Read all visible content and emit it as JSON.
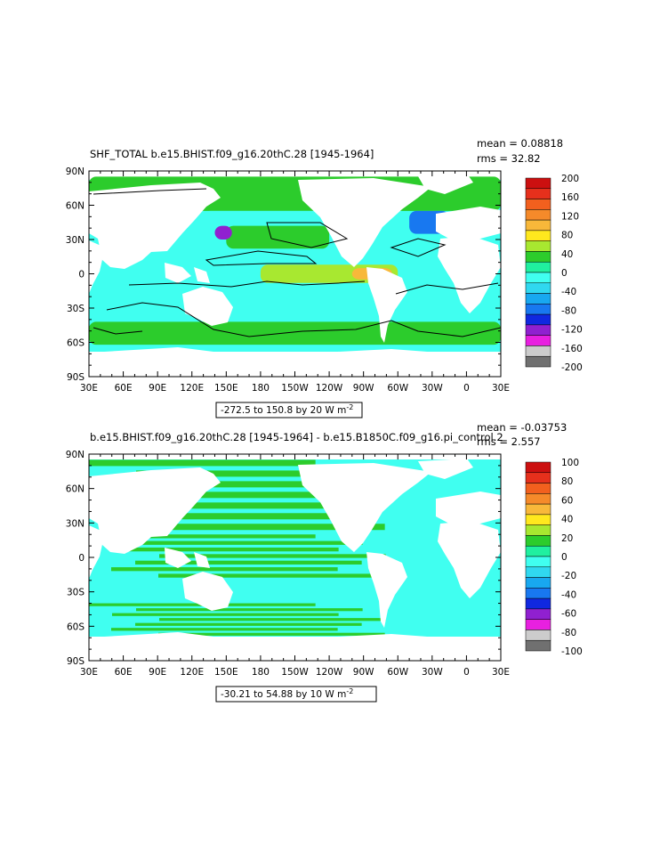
{
  "chart_data": [
    {
      "type": "heatmap",
      "title": "SHF_TOTAL  b.e15.BHIST.f09_g16.20thC.28  [1945-1964]",
      "stats": {
        "mean": "mean = 0.08818",
        "rms": "rms = 32.82"
      },
      "lon_ticks": [
        "30E",
        "60E",
        "90E",
        "120E",
        "150E",
        "180",
        "150W",
        "120W",
        "90W",
        "60W",
        "30W",
        "0",
        "30E"
      ],
      "lat_ticks": [
        "90N",
        "60N",
        "30N",
        "0",
        "30S",
        "60S",
        "90S"
      ],
      "colorbar_labels": [
        "200",
        "160",
        "120",
        "80",
        "40",
        "0",
        "-40",
        "-80",
        "-120",
        "-160",
        "-200"
      ],
      "colorbar_colors": [
        "#cc1010",
        "#e6301c",
        "#f2601e",
        "#f58a2a",
        "#f8b83a",
        "#ffe81e",
        "#a8e830",
        "#2ccc2c",
        "#20f0a0",
        "#40fff0",
        "#30d8f0",
        "#18a8f0",
        "#1878f0",
        "#1028e0",
        "#9020d0",
        "#e820e0",
        "#cccccc",
        "#707070"
      ],
      "range_label": "-272.5 to 150.8 by 20  W m",
      "range_unit_sup": "-2",
      "xlim": [
        30,
        390
      ],
      "ylim": [
        -90,
        90
      ],
      "regions": [
        {
          "name": "green-band-n1",
          "lon": [
            30,
            390
          ],
          "lat": [
            55,
            85
          ],
          "level": "#2ccc2c"
        },
        {
          "name": "cyan-nh",
          "lon": [
            130,
            235
          ],
          "lat": [
            10,
            55
          ],
          "level": "#40fff0"
        },
        {
          "name": "green-npac-zone",
          "lon": [
            150,
            240
          ],
          "lat": [
            22,
            42
          ],
          "level": "#2ccc2c"
        },
        {
          "name": "eq-warm",
          "lon": [
            180,
            300
          ],
          "lat": [
            -8,
            8
          ],
          "level": "#a8e830"
        },
        {
          "name": "eq-hot",
          "lon": [
            260,
            295
          ],
          "lat": [
            -5,
            5
          ],
          "level": "#f8b83a"
        },
        {
          "name": "so-green",
          "lon": [
            30,
            390
          ],
          "lat": [
            -62,
            -42
          ],
          "level": "#2ccc2c"
        },
        {
          "name": "natl-blue",
          "lon": [
            310,
            345
          ],
          "lat": [
            35,
            55
          ],
          "level": "#1878f0"
        },
        {
          "name": "nwp-purple",
          "lon": [
            140,
            155
          ],
          "lat": [
            30,
            42
          ],
          "level": "#9020d0"
        }
      ]
    },
    {
      "type": "heatmap",
      "title": "b.e15.BHIST.f09_g16.20thC.28  [1945-1964]  -  b.e15.B1850C.f09_g16.pi_control.2",
      "stats": {
        "mean": "mean = -0.03753",
        "rms": "rms = 2.557"
      },
      "lon_ticks": [
        "30E",
        "60E",
        "90E",
        "120E",
        "150E",
        "180",
        "150W",
        "120W",
        "90W",
        "60W",
        "30W",
        "0",
        "30E"
      ],
      "lat_ticks": [
        "90N",
        "60N",
        "30N",
        "0",
        "30S",
        "60S",
        "90S"
      ],
      "colorbar_labels": [
        "100",
        "80",
        "60",
        "40",
        "20",
        "0",
        "-20",
        "-40",
        "-60",
        "-80",
        "-100"
      ],
      "colorbar_colors": [
        "#cc1010",
        "#e6301c",
        "#f2601e",
        "#f58a2a",
        "#f8b83a",
        "#ffe81e",
        "#a8e830",
        "#2ccc2c",
        "#20f0a0",
        "#40fff0",
        "#30d8f0",
        "#18a8f0",
        "#1878f0",
        "#1028e0",
        "#9020d0",
        "#e820e0",
        "#cccccc",
        "#707070"
      ],
      "range_label": "-30.21 to 54.88 by 10  W m",
      "range_unit_sup": "-2",
      "xlim": [
        30,
        390
      ],
      "ylim": [
        -90,
        90
      ],
      "regions": [
        {
          "name": "green-patches-nh",
          "lon": [
            30,
            390
          ],
          "lat": [
            20,
            85
          ],
          "level": "#2ccc2c"
        },
        {
          "name": "green-patches-trop",
          "lon": [
            30,
            390
          ],
          "lat": [
            -20,
            20
          ],
          "level": "#2ccc2c"
        },
        {
          "name": "green-patches-so",
          "lon": [
            30,
            390
          ],
          "lat": [
            -70,
            -40
          ],
          "level": "#2ccc2c"
        }
      ]
    }
  ]
}
